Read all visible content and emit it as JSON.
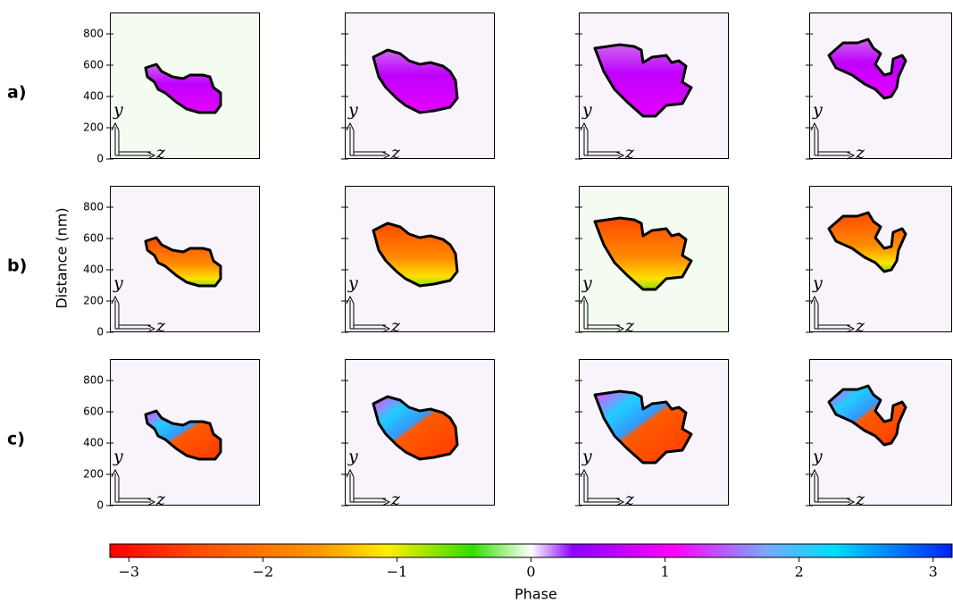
{
  "chart_data": {
    "type": "image-grid",
    "ylabel": "Distance (nm)",
    "row_labels": [
      "a)",
      "b)",
      "c)"
    ],
    "ylim": [
      0,
      937
    ],
    "yticks": [
      0,
      200,
      400,
      600,
      800
    ],
    "axis_glyph": {
      "vertical": "y",
      "horizontal": "z"
    },
    "colorbar": {
      "label": "Phase",
      "lim": [
        -3.14159,
        3.14159
      ],
      "ticks": [
        {
          "value": -3,
          "label": "−3"
        },
        {
          "value": -2,
          "label": "−2"
        },
        {
          "value": -1,
          "label": "−1"
        },
        0,
        1,
        2,
        {
          "value": 3,
          "label": "3"
        }
      ]
    }
  }
}
